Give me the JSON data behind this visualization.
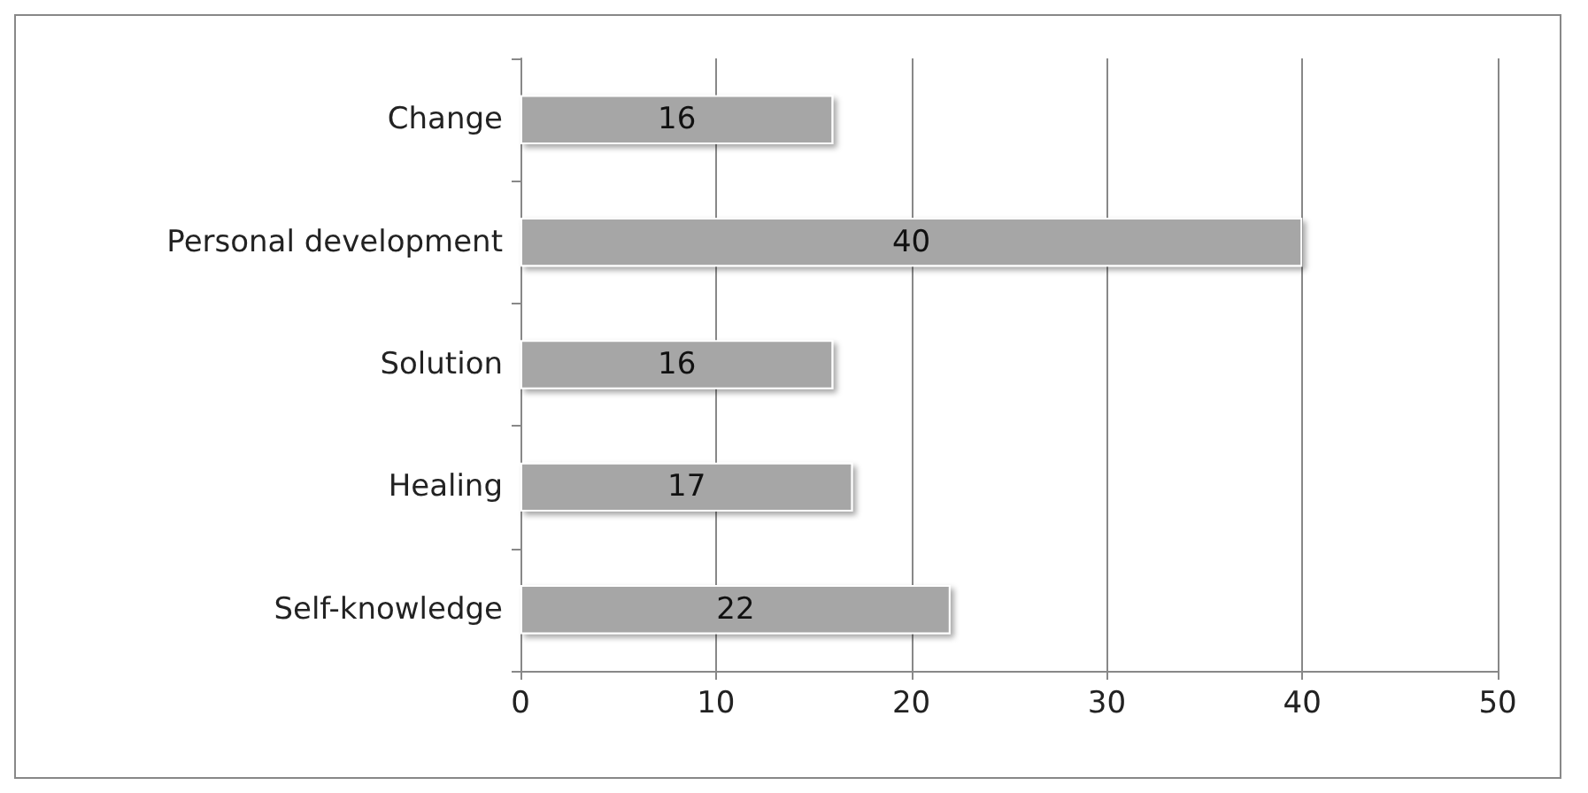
{
  "chart_data": {
    "type": "bar",
    "orientation": "horizontal",
    "categories": [
      "Change",
      "Personal development",
      "Solution",
      "Healing",
      "Self-knowledge"
    ],
    "values": [
      16,
      40,
      16,
      17,
      22
    ],
    "color": "#a6a6a6",
    "xlim": [
      0,
      50
    ],
    "xticks": [
      0,
      10,
      20,
      30,
      40,
      50
    ],
    "grid": "x",
    "data_labels": true
  }
}
